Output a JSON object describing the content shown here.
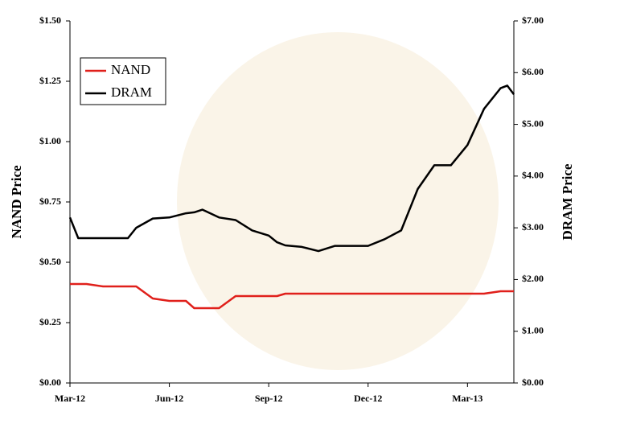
{
  "chart_data": {
    "type": "line",
    "x": [
      0,
      0.25,
      0.5,
      1,
      1.5,
      1.75,
      2,
      2.5,
      3,
      3.5,
      3.75,
      4,
      4.5,
      5,
      5.5,
      6,
      6.25,
      6.5,
      7,
      7.5,
      8,
      8.5,
      9,
      9.5,
      10,
      10.5,
      11,
      11.5,
      12,
      12.5,
      13,
      13.2,
      13.4
    ],
    "xlim": [
      0,
      13.4
    ],
    "xticks": [
      {
        "value": 0,
        "label": "Mar-12"
      },
      {
        "value": 3,
        "label": "Jun-12"
      },
      {
        "value": 6,
        "label": "Sep-12"
      },
      {
        "value": 9,
        "label": "Dec-12"
      },
      {
        "value": 12,
        "label": "Mar-13"
      }
    ],
    "ylabel": "NAND Price",
    "y2label": "DRAM Price",
    "ylim": [
      0,
      1.5
    ],
    "yticks": [
      {
        "value": 0,
        "label": "$0.00"
      },
      {
        "value": 0.25,
        "label": "$0.25"
      },
      {
        "value": 0.5,
        "label": "$0.50"
      },
      {
        "value": 0.75,
        "label": "$0.75"
      },
      {
        "value": 1,
        "label": "$1.00"
      },
      {
        "value": 1.25,
        "label": "$1.25"
      },
      {
        "value": 1.5,
        "label": "$1.50"
      }
    ],
    "y2lim": [
      0,
      7
    ],
    "y2ticks": [
      {
        "value": 0,
        "label": "$0.00"
      },
      {
        "value": 1,
        "label": "$1.00"
      },
      {
        "value": 2,
        "label": "$2.00"
      },
      {
        "value": 3,
        "label": "$3.00"
      },
      {
        "value": 4,
        "label": "$4.00"
      },
      {
        "value": 5,
        "label": "$5.00"
      },
      {
        "value": 6,
        "label": "$6.00"
      },
      {
        "value": 7,
        "label": "$7.00"
      }
    ],
    "legend": "upper left",
    "series": [
      {
        "name": "NAND",
        "color": "#e0201b",
        "values": [
          0.41,
          0.41,
          0.41,
          0.4,
          0.4,
          0.4,
          0.4,
          0.35,
          0.34,
          0.34,
          0.31,
          0.31,
          0.31,
          0.36,
          0.36,
          0.36,
          0.36,
          0.37,
          0.37,
          0.37,
          0.37,
          0.37,
          0.37,
          0.37,
          0.37,
          0.37,
          0.37,
          0.37,
          0.37,
          0.37,
          0.38,
          0.38,
          0.38
        ]
      },
      {
        "name": "DRAM",
        "color": "#000000",
        "axis": "y2",
        "values": [
          3.2,
          2.8,
          2.8,
          2.8,
          2.8,
          2.8,
          3.0,
          3.18,
          3.2,
          3.28,
          3.3,
          3.35,
          3.2,
          3.15,
          2.95,
          2.85,
          2.72,
          2.66,
          2.63,
          2.55,
          2.65,
          2.65,
          2.65,
          2.78,
          2.95,
          3.75,
          4.21,
          4.21,
          4.6,
          5.3,
          5.7,
          5.75,
          5.58
        ]
      }
    ]
  }
}
